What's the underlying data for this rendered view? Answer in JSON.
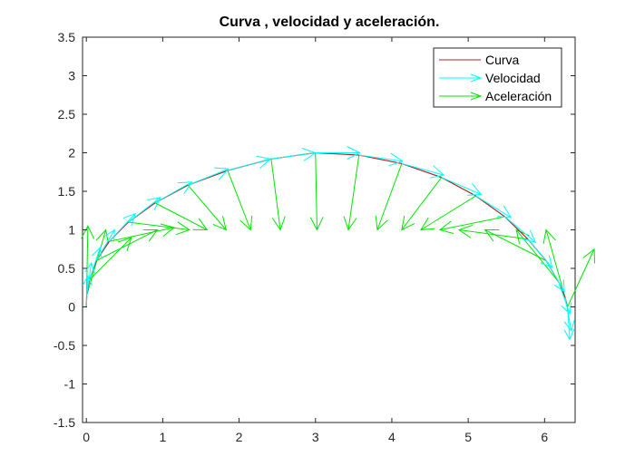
{
  "chart_data": {
    "type": "line",
    "title": "Curva , velocidad y aceleración.",
    "xlabel": "",
    "ylabel": "",
    "xlim": [
      -0.05,
      6.4
    ],
    "ylim": [
      -1.5,
      3.5
    ],
    "x_ticks": [
      0,
      1,
      2,
      3,
      4,
      5,
      6
    ],
    "x_tick_labels": [
      "0",
      "1",
      "2",
      "3",
      "4",
      "5",
      "6"
    ],
    "y_ticks": [
      -1.5,
      -1,
      -0.5,
      0,
      0.5,
      1,
      1.5,
      2,
      2.5,
      3,
      3.5
    ],
    "y_tick_labels": [
      "-1.5",
      "-1",
      "-0.5",
      "0",
      "0.5",
      "1",
      "1.5",
      "2",
      "2.5",
      "3",
      "3.5"
    ],
    "legend_position": "top-right",
    "grid": false,
    "series": [
      {
        "name": "Curva",
        "color": "#b22222",
        "x": [
          0,
          0.005,
          0.04,
          0.13,
          0.3,
          0.55,
          0.9,
          1.33,
          1.85,
          2.42,
          3.0,
          3.57,
          4.13,
          4.65,
          5.1,
          5.48,
          5.78,
          6.02,
          6.18,
          6.27,
          6.3
        ],
        "y": [
          0,
          0.15,
          0.35,
          0.6,
          0.85,
          1.1,
          1.35,
          1.58,
          1.77,
          1.92,
          2.0,
          1.97,
          1.86,
          1.68,
          1.44,
          1.17,
          0.88,
          0.6,
          0.33,
          0.12,
          0
        ]
      },
      {
        "name": "Velocidad",
        "color": "#00ffff",
        "kind": "quiver",
        "x": [
          0,
          0.005,
          0.04,
          0.13,
          0.3,
          0.55,
          0.9,
          1.33,
          1.85,
          2.42,
          3.0,
          3.57,
          4.13,
          4.65,
          5.1,
          5.48,
          5.78,
          6.02,
          6.18,
          6.27,
          6.3
        ],
        "y": [
          0,
          0.15,
          0.35,
          0.6,
          0.85,
          1.1,
          1.35,
          1.58,
          1.77,
          1.92,
          2.0,
          1.97,
          1.86,
          1.68,
          1.44,
          1.17,
          0.88,
          0.6,
          0.33,
          0.12,
          0
        ],
        "u": [
          0.02,
          0.06,
          0.14,
          0.24,
          0.34,
          0.42,
          0.48,
          0.53,
          0.56,
          0.58,
          0.58,
          0.57,
          0.55,
          0.52,
          0.46,
          0.4,
          0.32,
          0.24,
          0.15,
          0.08,
          0.03
        ],
        "v": [
          0.4,
          0.42,
          0.42,
          0.4,
          0.36,
          0.32,
          0.27,
          0.21,
          0.15,
          0.08,
          0.0,
          -0.08,
          -0.15,
          -0.22,
          -0.28,
          -0.33,
          -0.37,
          -0.4,
          -0.42,
          -0.43,
          -0.42
        ]
      },
      {
        "name": "Aceleración",
        "color": "#00e600",
        "kind": "quiver",
        "x": [
          0,
          0.005,
          0.04,
          0.13,
          0.3,
          0.55,
          0.9,
          1.33,
          1.85,
          2.42,
          3.0,
          3.57,
          4.13,
          4.65,
          5.1,
          5.48,
          5.78,
          6.02,
          6.18,
          6.27,
          6.3
        ],
        "y": [
          0,
          0.15,
          0.35,
          0.6,
          0.85,
          1.1,
          1.35,
          1.58,
          1.77,
          1.92,
          2.0,
          1.97,
          1.86,
          1.68,
          1.44,
          1.17,
          0.88,
          0.6,
          0.33,
          0.12,
          0
        ],
        "u": [
          0.02,
          0.25,
          0.55,
          0.8,
          0.85,
          0.8,
          0.68,
          0.5,
          0.3,
          0.12,
          0.02,
          -0.14,
          -0.32,
          -0.52,
          -0.72,
          -0.85,
          -0.9,
          -0.8,
          -0.55,
          -0.25,
          0.35
        ],
        "v": [
          1.05,
          0.85,
          0.55,
          0.4,
          0.18,
          -0.1,
          -0.35,
          -0.58,
          -0.77,
          -0.92,
          -1.0,
          -0.97,
          -0.86,
          -0.68,
          -0.44,
          -0.17,
          0.12,
          0.4,
          0.67,
          0.88,
          0.75
        ]
      }
    ]
  }
}
